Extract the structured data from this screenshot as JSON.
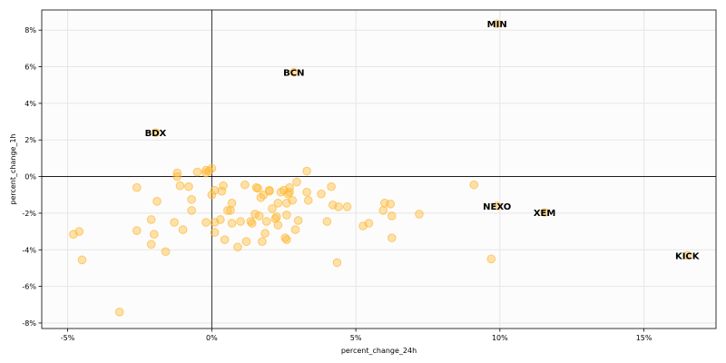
{
  "chart_data": {
    "type": "scatter",
    "xlabel": "percent_change_24h",
    "ylabel": "percent_change_1h",
    "xlim": [
      -5.9,
      17.5
    ],
    "ylim": [
      -8.3,
      9.1
    ],
    "grid": true,
    "x_ticks": [
      -5,
      0,
      5,
      10,
      15
    ],
    "x_tick_labels": [
      "-5%",
      "0%",
      "5%",
      "10%",
      "15%"
    ],
    "y_ticks": [
      -8,
      -6,
      -4,
      -2,
      0,
      2,
      4,
      6,
      8
    ],
    "y_tick_labels": [
      "-8%",
      "-6%",
      "-4%",
      "-2%",
      "0%",
      "2%",
      "4%",
      "6%",
      "8%"
    ],
    "reference_lines": {
      "x": 0,
      "y": 0
    },
    "colors": {
      "point": "#ffb833",
      "grid": "#e6e6e6",
      "plot_bg": "#fcfcfc",
      "ref": "#000000"
    },
    "points": [
      [
        -4.8,
        -3.15
      ],
      [
        -4.6,
        -3.0
      ],
      [
        -4.5,
        -4.55
      ],
      [
        -3.2,
        -7.4
      ],
      [
        -2.6,
        -0.6
      ],
      [
        -2.6,
        -2.95
      ],
      [
        -2.1,
        -2.35
      ],
      [
        -2.1,
        -3.7
      ],
      [
        -2.0,
        -3.15
      ],
      [
        -1.9,
        -1.35
      ],
      [
        -1.6,
        -4.1
      ],
      [
        -1.3,
        -2.5
      ],
      [
        -1.2,
        0.2
      ],
      [
        -1.2,
        0.0
      ],
      [
        -1.1,
        -0.5
      ],
      [
        -1.0,
        -2.9
      ],
      [
        -0.8,
        -0.55
      ],
      [
        -0.7,
        -1.25
      ],
      [
        -0.7,
        -1.85
      ],
      [
        -0.5,
        0.25
      ],
      [
        -0.2,
        0.2
      ],
      [
        -0.2,
        0.35
      ],
      [
        -0.2,
        -2.5
      ],
      [
        -0.1,
        0.3
      ],
      [
        0.0,
        0.45
      ],
      [
        0.0,
        -1.0
      ],
      [
        0.1,
        -0.75
      ],
      [
        0.1,
        -2.5
      ],
      [
        0.1,
        -3.05
      ],
      [
        0.3,
        -2.35
      ],
      [
        0.35,
        -0.8
      ],
      [
        0.4,
        -0.5
      ],
      [
        0.45,
        -3.45
      ],
      [
        0.55,
        -1.85
      ],
      [
        0.65,
        -1.85
      ],
      [
        0.7,
        -1.45
      ],
      [
        0.7,
        -2.55
      ],
      [
        0.9,
        -3.85
      ],
      [
        1.0,
        -2.45
      ],
      [
        1.15,
        -0.45
      ],
      [
        1.2,
        -3.55
      ],
      [
        1.35,
        -2.45
      ],
      [
        1.4,
        -2.55
      ],
      [
        1.5,
        -2.05
      ],
      [
        1.55,
        -0.6
      ],
      [
        1.6,
        -0.65
      ],
      [
        1.65,
        -2.15
      ],
      [
        1.7,
        -1.15
      ],
      [
        1.75,
        -3.55
      ],
      [
        1.8,
        -1.0
      ],
      [
        1.85,
        -3.1
      ],
      [
        1.9,
        -2.45
      ],
      [
        2.0,
        -0.75
      ],
      [
        2.0,
        -0.8
      ],
      [
        2.1,
        -1.75
      ],
      [
        2.2,
        -2.3
      ],
      [
        2.25,
        -2.2
      ],
      [
        2.3,
        -2.65
      ],
      [
        2.3,
        -1.45
      ],
      [
        2.4,
        -0.85
      ],
      [
        2.5,
        -0.75
      ],
      [
        2.55,
        -3.35
      ],
      [
        2.6,
        -3.45
      ],
      [
        2.6,
        -2.1
      ],
      [
        2.6,
        -1.45
      ],
      [
        2.65,
        -0.95
      ],
      [
        2.7,
        -0.6
      ],
      [
        2.7,
        -0.85
      ],
      [
        2.8,
        -1.3
      ],
      [
        2.9,
        -2.9
      ],
      [
        2.95,
        -0.3
      ],
      [
        3.0,
        -2.4
      ],
      [
        3.3,
        -0.85
      ],
      [
        3.3,
        0.3
      ],
      [
        3.35,
        -1.3
      ],
      [
        3.8,
        -0.95
      ],
      [
        4.0,
        -2.45
      ],
      [
        4.15,
        -0.55
      ],
      [
        4.2,
        -1.55
      ],
      [
        4.35,
        -4.7
      ],
      [
        4.4,
        -1.65
      ],
      [
        4.7,
        -1.65
      ],
      [
        5.25,
        -2.7
      ],
      [
        5.45,
        -2.55
      ],
      [
        5.95,
        -1.85
      ],
      [
        6.0,
        -1.45
      ],
      [
        6.2,
        -1.5
      ],
      [
        6.25,
        -3.35
      ],
      [
        6.25,
        -2.15
      ],
      [
        7.2,
        -2.05
      ],
      [
        9.1,
        -0.45
      ],
      [
        9.7,
        -4.5
      ]
    ],
    "annotations": [
      {
        "label": "MIN",
        "x": 9.9,
        "y": 8.35
      },
      {
        "label": "BCN",
        "x": 2.85,
        "y": 5.7
      },
      {
        "label": "BDX",
        "x": -1.95,
        "y": 2.4
      },
      {
        "label": "NEXO",
        "x": 9.9,
        "y": -1.6
      },
      {
        "label": "XEM",
        "x": 11.55,
        "y": -1.95
      },
      {
        "label": "KICK",
        "x": 16.5,
        "y": -4.3
      }
    ]
  }
}
